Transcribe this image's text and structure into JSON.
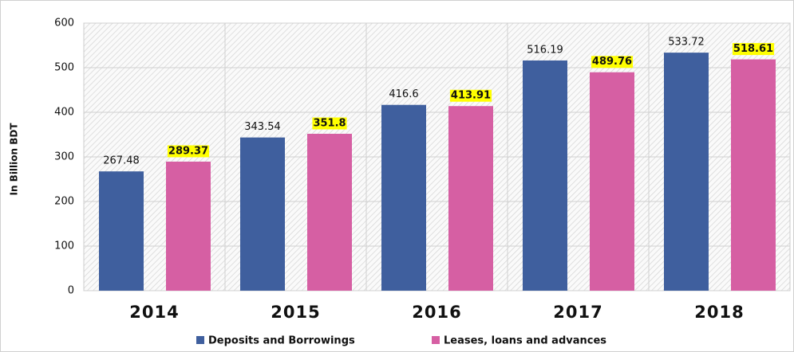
{
  "chart_data": {
    "type": "bar",
    "categories": [
      "2014",
      "2015",
      "2016",
      "2017",
      "2018"
    ],
    "series": [
      {
        "name": "Deposits and Borrowings",
        "color": "#3f5f9e",
        "values": [
          267.48,
          343.54,
          416.6,
          516.19,
          533.72
        ]
      },
      {
        "name": "Leases, loans and advances",
        "color": "#d65fa3",
        "values": [
          289.37,
          351.8,
          413.91,
          489.76,
          518.61
        ]
      }
    ],
    "y_label": "In Billion BDT",
    "ylim": [
      0,
      600
    ],
    "yticks": [
      0,
      100,
      200,
      300,
      400,
      500,
      600
    ],
    "grid": true,
    "legend": "bottom"
  }
}
